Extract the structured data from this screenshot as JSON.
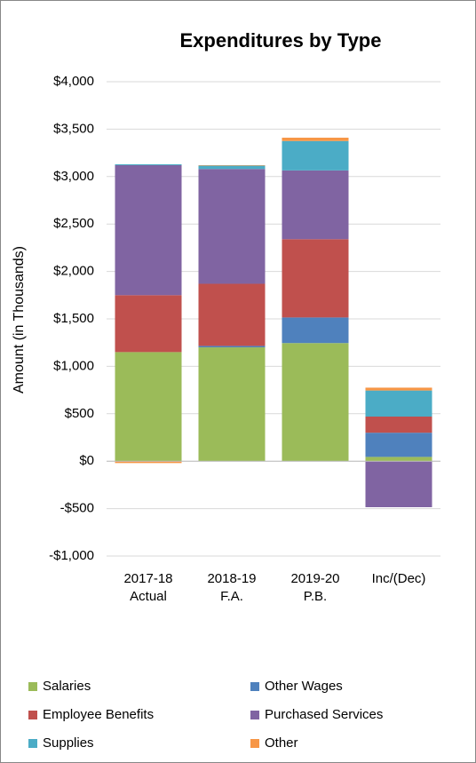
{
  "chart_data": {
    "type": "stacked_bar",
    "title": "Expenditures by Type",
    "y_label": "Amount (in Thousands)",
    "categories": [
      "2017-18 Actual",
      "2018-19 F.A.",
      "2019-20 P.B.",
      "Inc/(Dec)"
    ],
    "series": [
      {
        "name": "Salaries",
        "color": "#9bbb59",
        "values": [
          1150,
          1200,
          1245,
          45
        ]
      },
      {
        "name": "Other Wages",
        "color": "#4f81bd",
        "values": [
          0,
          15,
          270,
          255
        ]
      },
      {
        "name": "Employee Benefits",
        "color": "#c0504d",
        "values": [
          600,
          655,
          825,
          170
        ]
      },
      {
        "name": "Purchased Services",
        "color": "#8064a2",
        "values": [
          1370,
          1210,
          725,
          -485
        ]
      },
      {
        "name": "Supplies",
        "color": "#4bacc6",
        "values": [
          10,
          35,
          310,
          275
        ]
      },
      {
        "name": "Other",
        "color": "#f79646",
        "values": [
          -20,
          5,
          35,
          30
        ]
      }
    ],
    "ylim": [
      -1000,
      4000
    ],
    "yticks": [
      {
        "value": -1000,
        "label": "-$1,000"
      },
      {
        "value": -500,
        "label": "-$500"
      },
      {
        "value": 0,
        "label": "$0"
      },
      {
        "value": 500,
        "label": "$500"
      },
      {
        "value": 1000,
        "label": "$1,000"
      },
      {
        "value": 1500,
        "label": "$1,500"
      },
      {
        "value": 2000,
        "label": "$2,000"
      },
      {
        "value": 2500,
        "label": "$2,500"
      },
      {
        "value": 3000,
        "label": "$3,000"
      },
      {
        "value": 3500,
        "label": "$3,500"
      },
      {
        "value": 4000,
        "label": "$4,000"
      }
    ],
    "grid": true
  }
}
